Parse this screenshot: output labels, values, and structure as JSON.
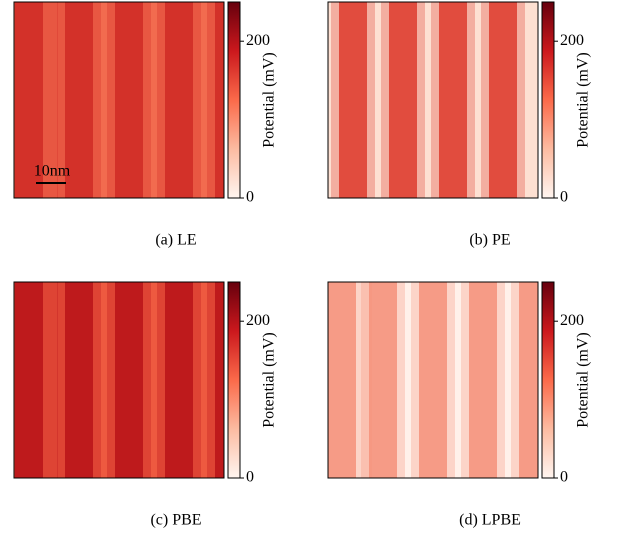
{
  "panels": [
    {
      "caption": "(a) LE",
      "scale_bar": "10nm",
      "colorbar": {
        "label": "Potential (mV)",
        "range": [
          0,
          250
        ],
        "ticks": [
          0,
          200
        ]
      }
    },
    {
      "caption": "(b) PE",
      "colorbar": {
        "label": "Potential (mV)",
        "range": [
          0,
          250
        ],
        "ticks": [
          0,
          200
        ]
      }
    },
    {
      "caption": "(c) PBE",
      "colorbar": {
        "label": "Potential (mV)",
        "range": [
          0,
          250
        ],
        "ticks": [
          0,
          200
        ]
      }
    },
    {
      "caption": "(d) LPBE",
      "colorbar": {
        "label": "Potential (mV)",
        "range": [
          0,
          250
        ],
        "ticks": [
          0,
          200
        ]
      }
    }
  ]
}
